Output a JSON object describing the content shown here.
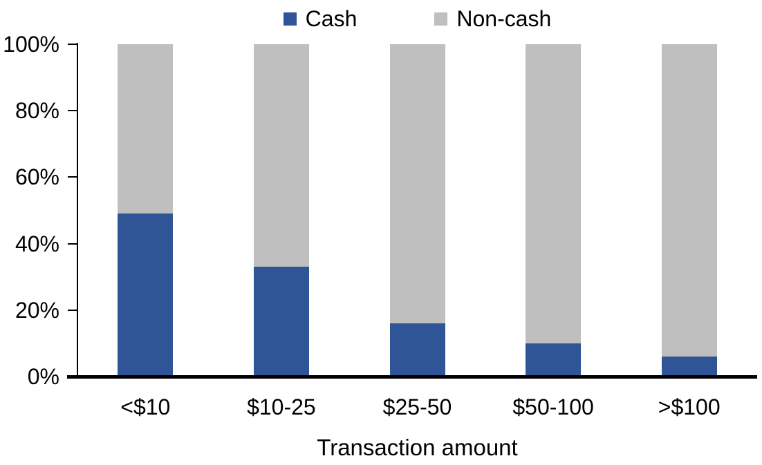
{
  "chart_data": {
    "type": "bar",
    "stacked": true,
    "stacked_mode": "percent",
    "title": "",
    "xlabel": "Transaction amount",
    "ylabel": "",
    "categories": [
      "<$10",
      "$10-25",
      "$25-50",
      "$50-100",
      ">$100"
    ],
    "series": [
      {
        "name": "Cash",
        "color": "#2F5596",
        "values": [
          49,
          33,
          16,
          10,
          6
        ]
      },
      {
        "name": "Non-cash",
        "color": "#BFBFBF",
        "values": [
          51,
          67,
          84,
          90,
          94
        ]
      }
    ],
    "ylim": [
      0,
      100
    ],
    "y_ticks": [
      {
        "label": "0%",
        "value": 0
      },
      {
        "label": "20%",
        "value": 20
      },
      {
        "label": "40%",
        "value": 40
      },
      {
        "label": "60%",
        "value": 60
      },
      {
        "label": "80%",
        "value": 80
      },
      {
        "label": "100%",
        "value": 100
      }
    ],
    "legend_position": "top-center",
    "grid": false,
    "axis_color": "#000000",
    "text_color": "#000000",
    "background_color": "#FFFFFF"
  }
}
